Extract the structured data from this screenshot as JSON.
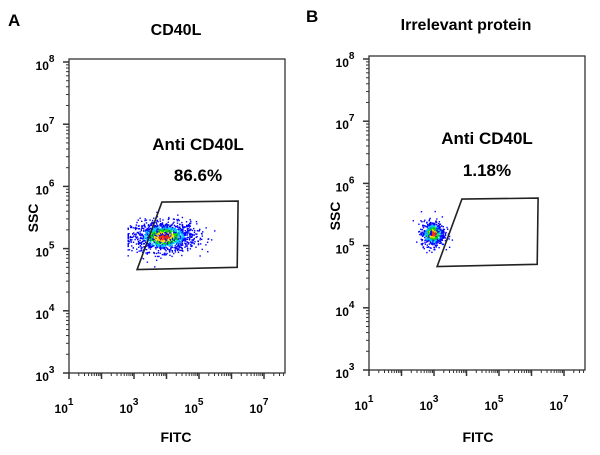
{
  "chart_data": [
    {
      "type": "scatter",
      "panel_label": "A",
      "title": "CD40L",
      "xlabel": "FITC",
      "ylabel": "SSC",
      "x_scale": "log",
      "y_scale": "log",
      "xlim": [
        10,
        40000000
      ],
      "ylim": [
        1000,
        100000000
      ],
      "x_ticks": [
        {
          "base": "10",
          "exp": "1"
        },
        {
          "base": "10",
          "exp": "3"
        },
        {
          "base": "10",
          "exp": "5"
        },
        {
          "base": "10",
          "exp": "7"
        }
      ],
      "y_ticks": [
        {
          "base": "10",
          "exp": "3"
        },
        {
          "base": "10",
          "exp": "4"
        },
        {
          "base": "10",
          "exp": "5"
        },
        {
          "base": "10",
          "exp": "6"
        },
        {
          "base": "10",
          "exp": "7"
        },
        {
          "base": "10",
          "exp": "8"
        }
      ],
      "gate": {
        "name": "Anti CD40L",
        "percent": "86.6%",
        "vertices_data": [
          [
            7200,
            560000
          ],
          [
            1600000,
            580000
          ],
          [
            1500000,
            50000
          ],
          [
            1250,
            46000
          ]
        ]
      },
      "population": {
        "fitc_log_center": 3.9,
        "fitc_log_spread": 0.45,
        "ssc_log_center": 5.2,
        "ssc_log_spread": 0.12
      },
      "grid": false,
      "density_colors": [
        "#0000ff",
        "#00c8ff",
        "#00e000",
        "#ffe000",
        "#ff3000"
      ]
    },
    {
      "type": "scatter",
      "panel_label": "B",
      "title": "Irrelevant protein",
      "xlabel": "FITC",
      "ylabel": "SSC",
      "x_scale": "log",
      "y_scale": "log",
      "xlim": [
        10,
        40000000
      ],
      "ylim": [
        1000,
        100000000
      ],
      "x_ticks": [
        {
          "base": "10",
          "exp": "1"
        },
        {
          "base": "10",
          "exp": "3"
        },
        {
          "base": "10",
          "exp": "5"
        },
        {
          "base": "10",
          "exp": "7"
        }
      ],
      "y_ticks": [
        {
          "base": "10",
          "exp": "3"
        },
        {
          "base": "10",
          "exp": "4"
        },
        {
          "base": "10",
          "exp": "5"
        },
        {
          "base": "10",
          "exp": "6"
        },
        {
          "base": "10",
          "exp": "7"
        },
        {
          "base": "10",
          "exp": "8"
        }
      ],
      "gate": {
        "name": "Anti CD40L",
        "percent": "1.18%",
        "vertices_data": [
          [
            7200,
            560000
          ],
          [
            1600000,
            580000
          ],
          [
            1500000,
            50000
          ],
          [
            1250,
            46000
          ]
        ]
      },
      "population": {
        "fitc_log_center": 2.95,
        "fitc_log_spread": 0.18,
        "ssc_log_center": 5.2,
        "ssc_log_spread": 0.1
      },
      "grid": false,
      "density_colors": [
        "#0000ff",
        "#00c8ff",
        "#00e000",
        "#ffe000",
        "#ff3000"
      ]
    }
  ]
}
